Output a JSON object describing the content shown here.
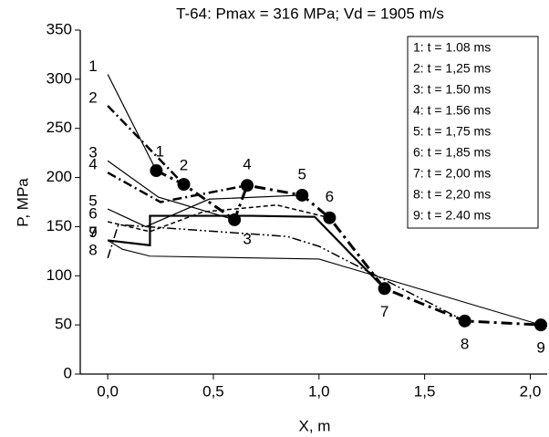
{
  "chart_data": {
    "type": "line",
    "title": "T-64: Pmax = 316 MPa; Vd = 1905 m/s",
    "x_label": "X, m",
    "y_label": "P, MPa",
    "xlim": [
      -0.13,
      2.08
    ],
    "ylim": [
      0,
      350
    ],
    "xticks": [
      {
        "value": 0,
        "label": "0,0"
      },
      {
        "value": 0.5,
        "label": "0,5"
      },
      {
        "value": 1,
        "label": "1,0"
      },
      {
        "value": 1.5,
        "label": "1,5"
      },
      {
        "value": 2,
        "label": "2,0"
      }
    ],
    "yticks": [
      0,
      50,
      100,
      150,
      200,
      250,
      300,
      350
    ],
    "curve_ids": [
      "1",
      "2",
      "3",
      "4",
      "5",
      "6",
      "7",
      "8",
      "9"
    ],
    "series": [
      {
        "name": "1: t = 1.08 ms",
        "color": "#000",
        "width": 1.2,
        "dash": "none",
        "x": [
          0,
          0.23
        ],
        "values": [
          305,
          207
        ]
      },
      {
        "name": "2: t = 1,25 ms",
        "color": "#000",
        "width": 2.5,
        "dash": "10 4 2 4",
        "x": [
          0,
          0.36
        ],
        "values": [
          273,
          193
        ]
      },
      {
        "name": "3: t = 1.50 ms",
        "color": "#000",
        "width": 1.2,
        "dash": "none",
        "x": [
          0,
          0.24,
          0.6
        ],
        "values": [
          217,
          180,
          157
        ]
      },
      {
        "name": "4: t = 1.56 ms",
        "color": "#000",
        "width": 2.5,
        "dash": "10 4 2 4",
        "x": [
          0,
          0.25,
          0.66
        ],
        "values": [
          205,
          175,
          192
        ]
      },
      {
        "name": "5: t = 1,75 ms",
        "color": "#000",
        "width": 1.2,
        "dash": "none",
        "x": [
          0,
          0.18,
          0.48,
          0.92
        ],
        "values": [
          168,
          150,
          178,
          182
        ]
      },
      {
        "name": "6: t = 1,85 ms",
        "color": "#000",
        "width": 1.5,
        "dash": "5 3",
        "x": [
          0,
          0.2,
          0.45,
          0.8,
          1.05
        ],
        "values": [
          155,
          145,
          165,
          172,
          159
        ]
      },
      {
        "name": "7: t = 2,00 ms",
        "color": "#000",
        "width": 2.2,
        "dash": "none",
        "x": [
          0,
          0.2,
          0.2,
          0.68,
          0.98,
          1.31
        ],
        "values": [
          136,
          131,
          161,
          161,
          160,
          87
        ]
      },
      {
        "name": "8: t = 2,20 ms",
        "color": "#000",
        "width": 1.5,
        "dash": "10 3 2 3 2 3",
        "x": [
          0,
          0.05,
          0.85,
          1.0,
          1.69
        ],
        "values": [
          118,
          152,
          140,
          130,
          54
        ]
      },
      {
        "name": "9: t = 2.40 ms",
        "color": "#000",
        "width": 1.1,
        "dash": "none",
        "x": [
          0,
          0.07,
          0.2,
          1.0,
          2.05
        ],
        "values": [
          136,
          127,
          120,
          117,
          50
        ]
      }
    ],
    "peaks": {
      "color": "#000",
      "x": [
        0.23,
        0.36,
        0.6,
        0.66,
        0.92,
        1.05,
        1.31,
        1.69,
        2.05
      ],
      "values": [
        207,
        193,
        157,
        192,
        182,
        159,
        87,
        54,
        50
      ]
    }
  }
}
